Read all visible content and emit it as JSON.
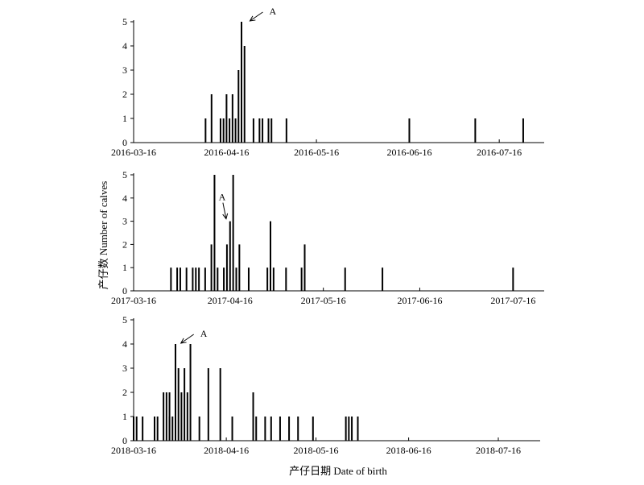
{
  "figure": {
    "ylabel": "产仔数 Number of calves",
    "xlabel": "产仔日期 Date of birth"
  },
  "chart_data": [
    {
      "type": "bar",
      "year": 2016,
      "x_ticks": [
        "2016-03-16",
        "2016-04-16",
        "2016-05-16",
        "2016-06-16",
        "2016-07-16"
      ],
      "xlim": [
        "2016-03-16",
        "2016-07-31"
      ],
      "ylim": [
        0,
        5
      ],
      "y_ticks": [
        0,
        1,
        2,
        3,
        4,
        5
      ],
      "grid": false,
      "annotations": [
        {
          "text": "A",
          "x": "2016-04-23",
          "y": 5
        }
      ],
      "points": [
        [
          "2016-04-09",
          1
        ],
        [
          "2016-04-11",
          2
        ],
        [
          "2016-04-14",
          1
        ],
        [
          "2016-04-15",
          1
        ],
        [
          "2016-04-16",
          2
        ],
        [
          "2016-04-17",
          1
        ],
        [
          "2016-04-18",
          2
        ],
        [
          "2016-04-19",
          1
        ],
        [
          "2016-04-20",
          3
        ],
        [
          "2016-04-21",
          5
        ],
        [
          "2016-04-22",
          4
        ],
        [
          "2016-04-25",
          1
        ],
        [
          "2016-04-27",
          1
        ],
        [
          "2016-04-28",
          1
        ],
        [
          "2016-04-30",
          1
        ],
        [
          "2016-05-01",
          1
        ],
        [
          "2016-05-06",
          1
        ],
        [
          "2016-06-16",
          1
        ],
        [
          "2016-07-08",
          1
        ],
        [
          "2016-07-24",
          1
        ]
      ]
    },
    {
      "type": "bar",
      "year": 2017,
      "x_ticks": [
        "2017-03-16",
        "2017-04-16",
        "2017-05-16",
        "2017-06-16",
        "2017-07-16"
      ],
      "xlim": [
        "2017-03-16",
        "2017-07-26"
      ],
      "ylim": [
        0,
        5
      ],
      "y_ticks": [
        0,
        1,
        2,
        3,
        4,
        5
      ],
      "grid": false,
      "annotations": [
        {
          "text": "A",
          "x": "2017-04-15",
          "y": 3
        }
      ],
      "points": [
        [
          "2017-03-28",
          1
        ],
        [
          "2017-03-30",
          1
        ],
        [
          "2017-03-31",
          1
        ],
        [
          "2017-04-02",
          1
        ],
        [
          "2017-04-04",
          1
        ],
        [
          "2017-04-05",
          1
        ],
        [
          "2017-04-06",
          1
        ],
        [
          "2017-04-08",
          1
        ],
        [
          "2017-04-10",
          2
        ],
        [
          "2017-04-11",
          5
        ],
        [
          "2017-04-12",
          1
        ],
        [
          "2017-04-14",
          1
        ],
        [
          "2017-04-15",
          2
        ],
        [
          "2017-04-16",
          3
        ],
        [
          "2017-04-17",
          5
        ],
        [
          "2017-04-18",
          1
        ],
        [
          "2017-04-19",
          2
        ],
        [
          "2017-04-22",
          1
        ],
        [
          "2017-04-28",
          1
        ],
        [
          "2017-04-29",
          3
        ],
        [
          "2017-04-30",
          1
        ],
        [
          "2017-05-04",
          1
        ],
        [
          "2017-05-09",
          1
        ],
        [
          "2017-05-10",
          2
        ],
        [
          "2017-05-23",
          1
        ],
        [
          "2017-06-04",
          1
        ],
        [
          "2017-07-16",
          1
        ]
      ]
    },
    {
      "type": "bar",
      "year": 2018,
      "x_ticks": [
        "2018-03-16",
        "2018-04-16",
        "2018-05-16",
        "2018-06-16",
        "2018-07-16"
      ],
      "xlim": [
        "2018-03-16",
        "2018-07-30"
      ],
      "ylim": [
        0,
        5
      ],
      "y_ticks": [
        0,
        1,
        2,
        3,
        4,
        5
      ],
      "grid": false,
      "annotations": [
        {
          "text": "A",
          "x": "2018-03-31",
          "y": 4
        }
      ],
      "points": [
        [
          "2018-03-16",
          1
        ],
        [
          "2018-03-17",
          1
        ],
        [
          "2018-03-19",
          1
        ],
        [
          "2018-03-23",
          1
        ],
        [
          "2018-03-24",
          1
        ],
        [
          "2018-03-26",
          2
        ],
        [
          "2018-03-27",
          2
        ],
        [
          "2018-03-28",
          2
        ],
        [
          "2018-03-28",
          1
        ],
        [
          "2018-03-29",
          1
        ],
        [
          "2018-03-30",
          4
        ],
        [
          "2018-03-31",
          3
        ],
        [
          "2018-04-01",
          2
        ],
        [
          "2018-04-02",
          3
        ],
        [
          "2018-04-03",
          2
        ],
        [
          "2018-04-04",
          4
        ],
        [
          "2018-04-07",
          1
        ],
        [
          "2018-04-10",
          3
        ],
        [
          "2018-04-14",
          3
        ],
        [
          "2018-04-18",
          1
        ],
        [
          "2018-04-25",
          2
        ],
        [
          "2018-04-26",
          1
        ],
        [
          "2018-04-29",
          1
        ],
        [
          "2018-05-01",
          1
        ],
        [
          "2018-05-04",
          1
        ],
        [
          "2018-05-07",
          1
        ],
        [
          "2018-05-10",
          1
        ],
        [
          "2018-05-15",
          1
        ],
        [
          "2018-05-26",
          1
        ],
        [
          "2018-05-27",
          1
        ],
        [
          "2018-05-28",
          1
        ],
        [
          "2018-05-30",
          1
        ]
      ]
    }
  ]
}
